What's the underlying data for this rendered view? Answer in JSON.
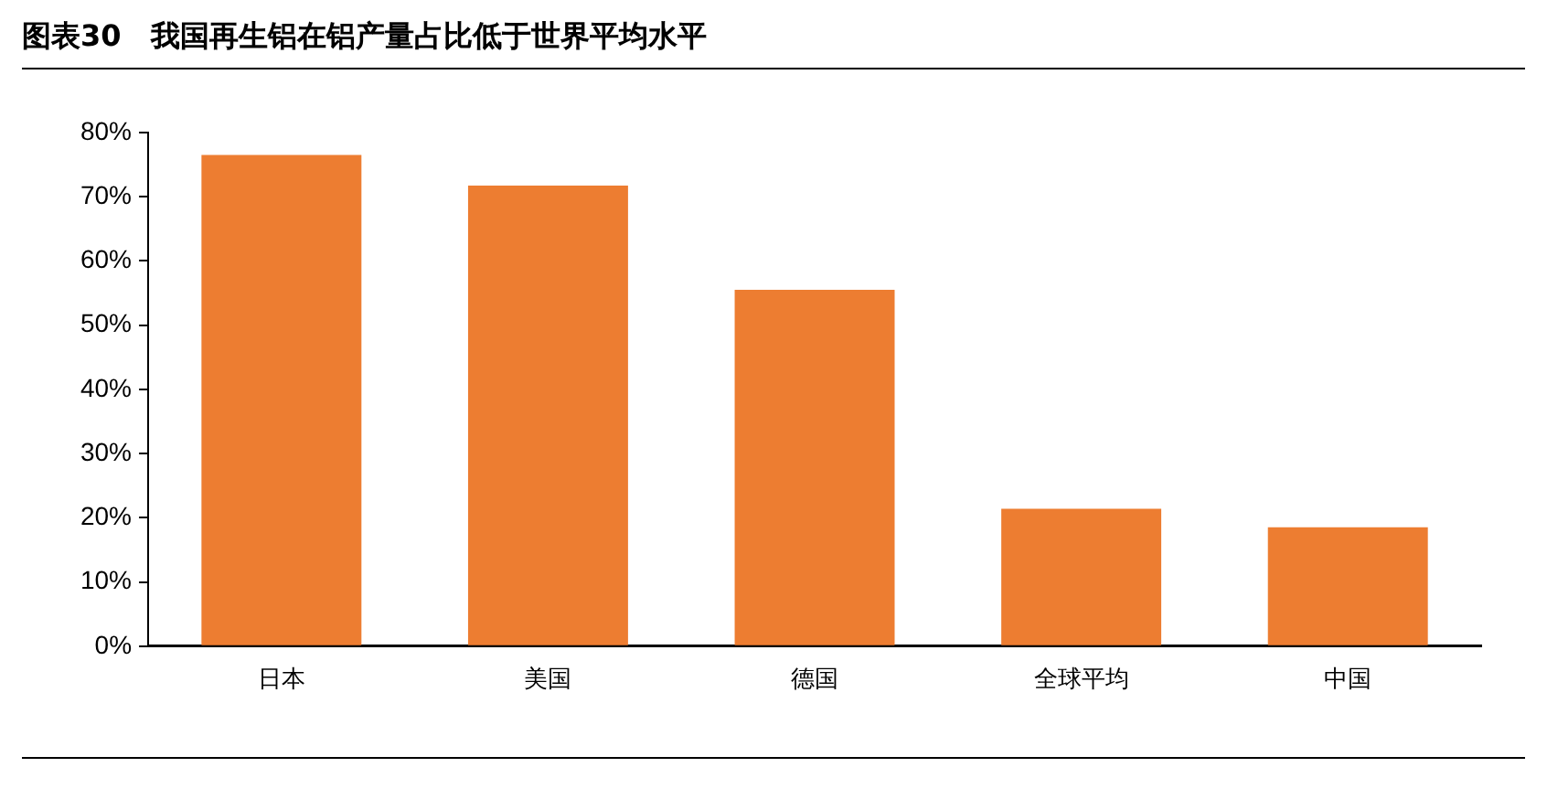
{
  "chart_data": {
    "type": "bar",
    "title": "图表30　我国再生铝在铝产量占比低于世界平均水平",
    "categories": [
      "日本",
      "美国",
      "德国",
      "全球平均",
      "中国"
    ],
    "values": [
      76.5,
      71.7,
      55.5,
      21.4,
      18.5
    ],
    "color": "#ed7d31",
    "ylim": [
      0,
      80
    ],
    "yticks": [
      {
        "value": 0,
        "label": "0%"
      },
      {
        "value": 10,
        "label": "10%"
      },
      {
        "value": 20,
        "label": "20%"
      },
      {
        "value": 30,
        "label": "30%"
      },
      {
        "value": 40,
        "label": "40%"
      },
      {
        "value": 50,
        "label": "50%"
      },
      {
        "value": 60,
        "label": "60%"
      },
      {
        "value": 70,
        "label": "70%"
      },
      {
        "value": 80,
        "label": "80%"
      }
    ],
    "grid": false,
    "legend": false
  }
}
